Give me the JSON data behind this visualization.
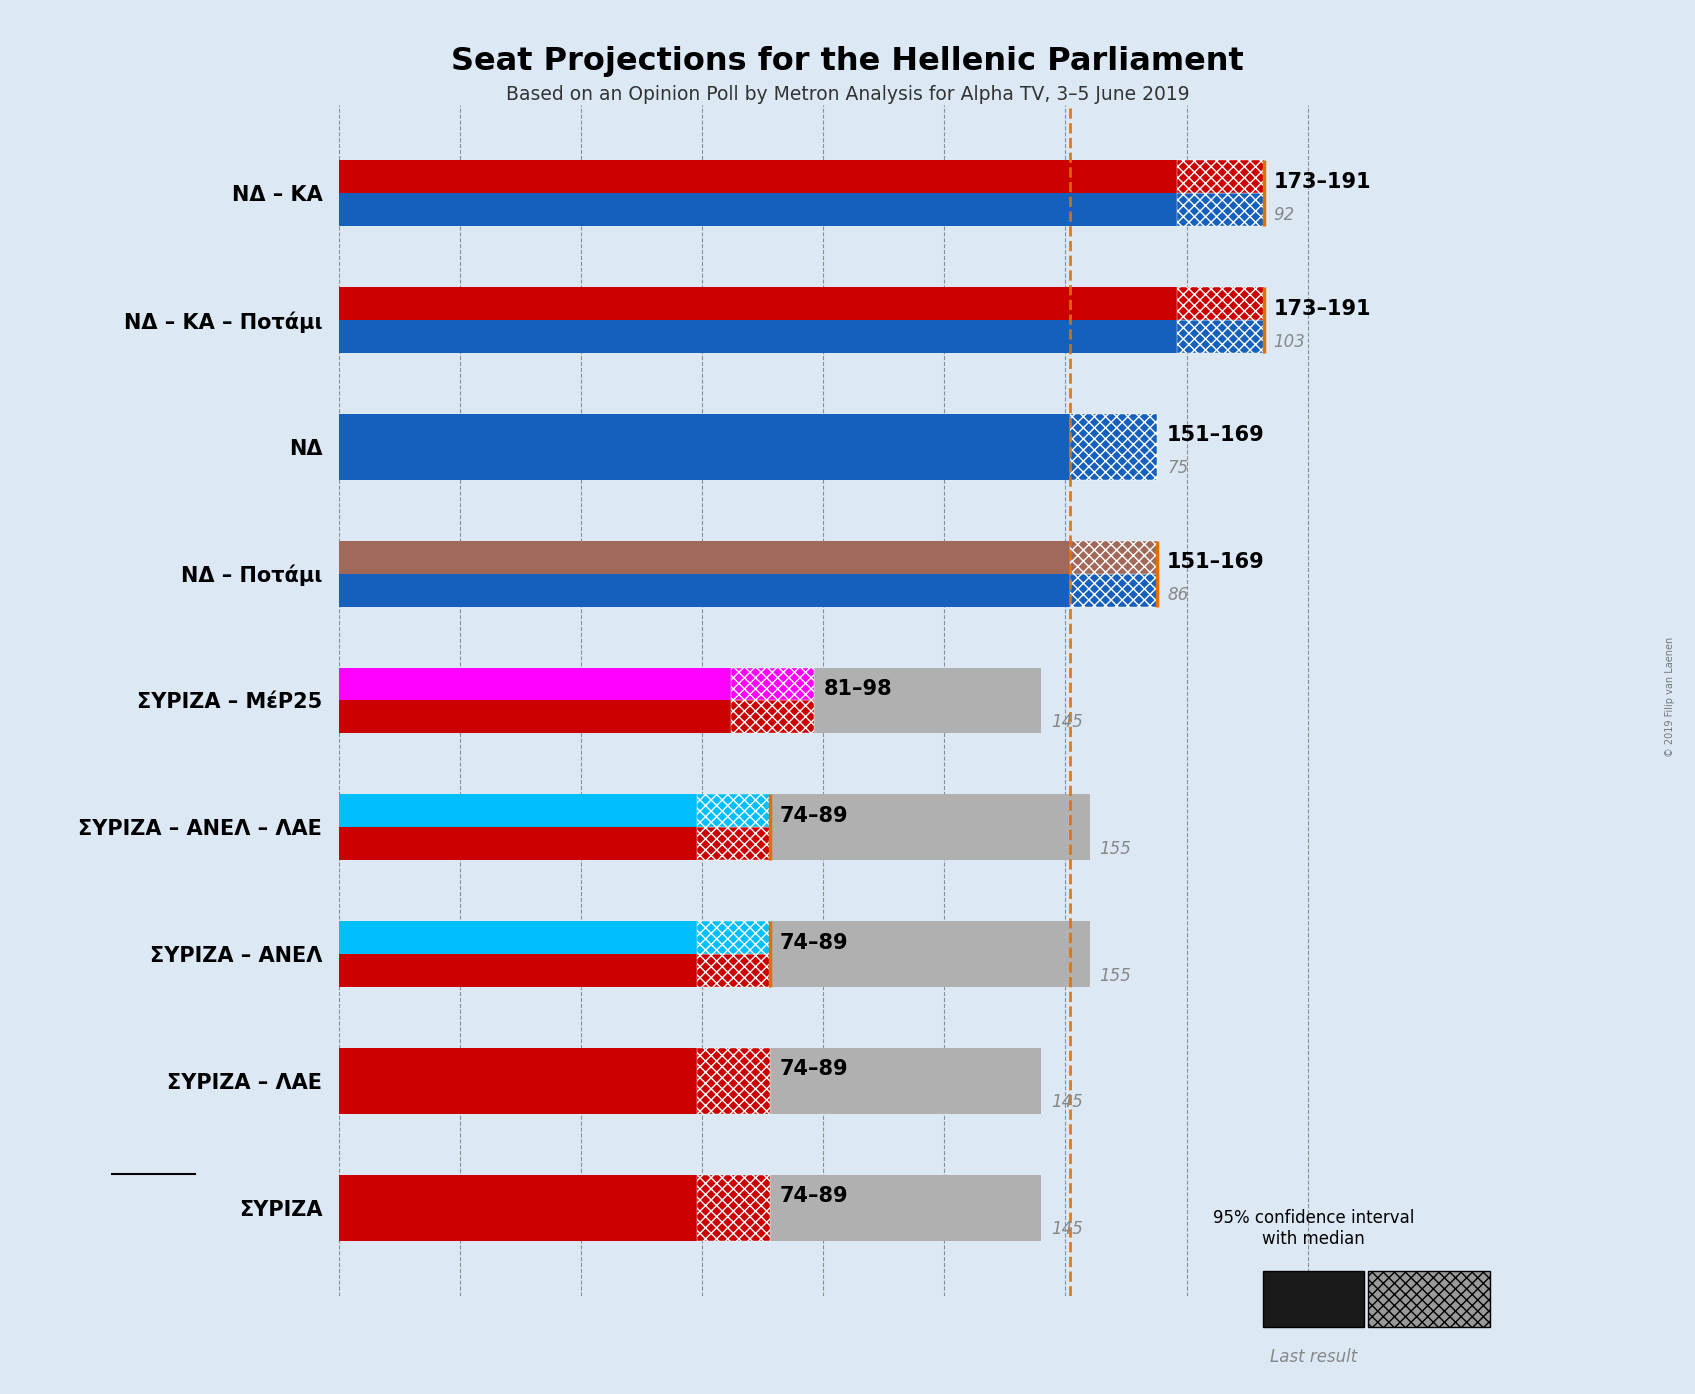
{
  "title": "Seat Projections for the Hellenic Parliament",
  "subtitle": "Based on an Opinion Poll by Metron Analysis for Alpha TV, 3–5 June 2019",
  "copyright": "© 2019 Filip van Laenen",
  "background_color": "#dce9f5",
  "coalitions": [
    {
      "label": "NΔ – KΑ",
      "ci_low": 173,
      "ci_high": 191,
      "last_result": 92,
      "bar_colors": [
        "#1560BD",
        "#CC0001"
      ],
      "orange_line": true
    },
    {
      "label": "NΔ – KΑ – Ποτάμι",
      "ci_low": 173,
      "ci_high": 191,
      "last_result": 103,
      "bar_colors": [
        "#1560BD",
        "#CC0001"
      ],
      "orange_line": true
    },
    {
      "label": "NΔ",
      "ci_low": 151,
      "ci_high": 169,
      "last_result": 75,
      "bar_colors": [
        "#1560BD"
      ],
      "orange_line": false
    },
    {
      "label": "NΔ – Ποτάμι",
      "ci_low": 151,
      "ci_high": 169,
      "last_result": 86,
      "bar_colors": [
        "#1560BD",
        "#A0695A"
      ],
      "orange_line": true
    },
    {
      "label": "ΣΥΡΙΖΑ – ΜέΡ25",
      "ci_low": 81,
      "ci_high": 98,
      "last_result": 145,
      "bar_colors": [
        "#CC0001",
        "#FF00FF"
      ],
      "orange_line": false
    },
    {
      "label": "ΣΥΡΙΖΑ – ΑΝΕΛ – ΛΑΕ",
      "ci_low": 74,
      "ci_high": 89,
      "last_result": 155,
      "bar_colors": [
        "#CC0001",
        "#00BFFF"
      ],
      "orange_line": true
    },
    {
      "label": "ΣΥΡΙΖΑ – ΑΝΕΛ",
      "ci_low": 74,
      "ci_high": 89,
      "last_result": 155,
      "bar_colors": [
        "#CC0001",
        "#00BFFF"
      ],
      "orange_line": true
    },
    {
      "label": "ΣΥΡΙΖΑ – ΛΑΕ",
      "ci_low": 74,
      "ci_high": 89,
      "last_result": 145,
      "bar_colors": [
        "#CC0001"
      ],
      "orange_line": false
    },
    {
      "label": "ΣΥΡΙΖΑ",
      "label_underline": true,
      "ci_low": 74,
      "ci_high": 89,
      "last_result": 145,
      "bar_colors": [
        "#CC0001"
      ],
      "orange_line": false
    }
  ],
  "x_max": 210,
  "majority_line": 151,
  "dashed_line_color": "#555555",
  "orange_line_color": "#E07000",
  "gray_bar_color": "#B0B0B0",
  "tick_interval": 25
}
